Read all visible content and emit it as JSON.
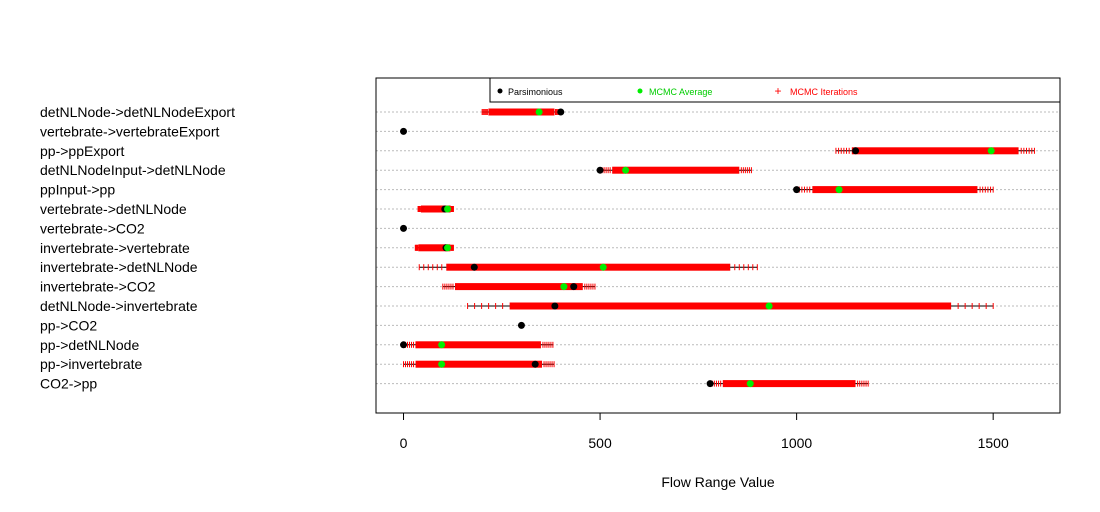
{
  "colors": {
    "parsimonious": "#000000",
    "mcmc_average": "#00ee00",
    "mcmc_iterations": "#ff0000",
    "grid": "#bbbbbb"
  },
  "chart_data": {
    "type": "dot-range",
    "xlabel": "Flow Range Value",
    "xlim": [
      -70,
      1670
    ],
    "xticks": [
      0,
      500,
      1000,
      1500
    ],
    "xtick_labels": [
      "0",
      "500",
      "1000",
      "1500"
    ],
    "grid": "horizontal dotted",
    "legend": {
      "placement": "top",
      "entries": [
        {
          "name": "Parsimonious",
          "marker": "dot",
          "color": "#000000"
        },
        {
          "name": "MCMC Average",
          "marker": "dot",
          "color": "#00ee00"
        },
        {
          "name": "MCMC Iterations",
          "marker": "plus",
          "color": "#ff0000"
        }
      ]
    },
    "categories": [
      "detNLNode->detNLNodeExport",
      "vertebrate->vertebrateExport",
      "pp->ppExport",
      "detNLNodeInput->detNLNode",
      "ppInput->pp",
      "vertebrate->detNLNode",
      "vertebrate->CO2",
      "invertebrate->vertebrate",
      "invertebrate->detNLNode",
      "invertebrate->CO2",
      "detNLNode->invertebrate",
      "pp->CO2",
      "pp->detNLNode",
      "pp->invertebrate",
      "CO2->pp"
    ],
    "series": [
      {
        "name": "Parsimonious",
        "values": [
          400,
          0,
          1150,
          500,
          1000,
          105,
          0,
          108,
          180,
          433,
          385,
          300,
          0,
          335,
          780
        ]
      },
      {
        "name": "MCMC Average",
        "values": [
          345,
          null,
          1495,
          565,
          1108,
          112,
          null,
          112,
          508,
          408,
          930,
          null,
          97,
          97,
          882
        ]
      },
      {
        "name": "MCMC Iterations",
        "min": [
          200,
          null,
          1100,
          500,
          1000,
          37,
          null,
          30,
          40,
          100,
          163,
          null,
          0,
          0,
          780
        ],
        "max": [
          400,
          null,
          1605,
          885,
          1500,
          127,
          null,
          127,
          900,
          487,
          1500,
          null,
          380,
          383,
          1182
        ]
      }
    ]
  }
}
